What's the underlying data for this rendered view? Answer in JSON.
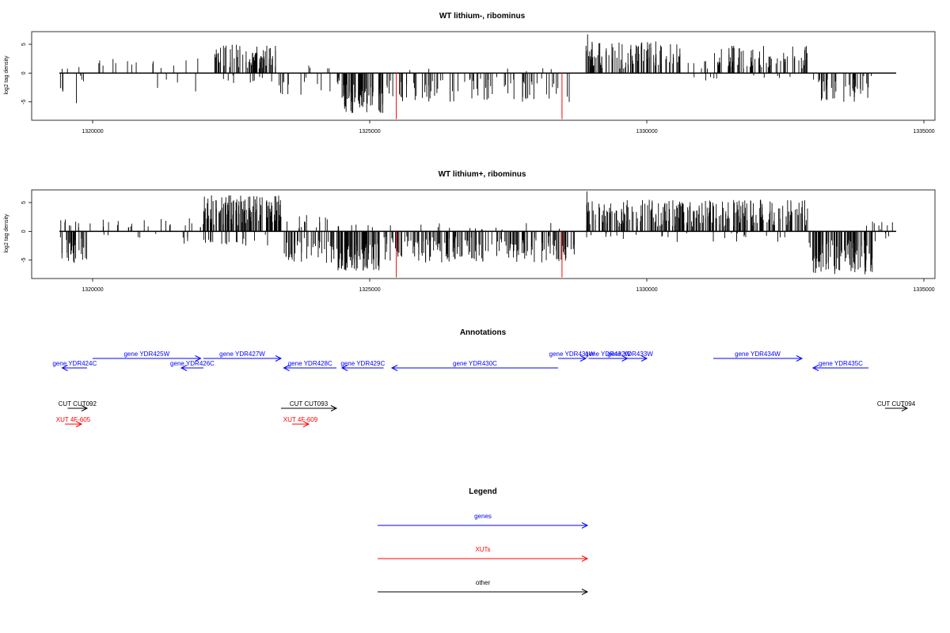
{
  "chart_data": [
    {
      "type": "bar",
      "title": "WT lithium-, ribominus",
      "ylabel": "log2 tag density",
      "xlim": [
        1318900,
        1335200
      ],
      "ylim": [
        -8.2,
        7.2
      ],
      "x_ticks": [
        1320000,
        1325000,
        1330000,
        1335000
      ],
      "y_ticks": [
        -5,
        0,
        5
      ],
      "baseline": [
        1319400,
        1334500
      ],
      "red_markers": [
        {
          "x": 1325480,
          "y": -8.0
        },
        {
          "x": 1328470,
          "y": -8.0
        }
      ],
      "segments": [
        {
          "from": 1319400,
          "to": 1319480,
          "n": 4,
          "sign": -1,
          "lo": 2.0,
          "hi": 5.5
        },
        {
          "from": 1319420,
          "to": 1319900,
          "n": 3,
          "sign": 1,
          "lo": 0.4,
          "hi": 1.2
        },
        {
          "from": 1319500,
          "to": 1319900,
          "n": 3,
          "sign": -1,
          "lo": 0.4,
          "hi": 1.5
        },
        {
          "from": 1319700,
          "to": 1319720,
          "n": 1,
          "sign": -1,
          "lo": 5.2,
          "hi": 5.5
        },
        {
          "from": 1319800,
          "to": 1320500,
          "n": 5,
          "sign": 1,
          "lo": 1.0,
          "hi": 2.6
        },
        {
          "from": 1320600,
          "to": 1320900,
          "n": 3,
          "sign": 1,
          "lo": 1.0,
          "hi": 2.6
        },
        {
          "from": 1321000,
          "to": 1321700,
          "n": 5,
          "sign": 1,
          "lo": 0.8,
          "hi": 2.2
        },
        {
          "from": 1321100,
          "to": 1321600,
          "n": 3,
          "sign": -1,
          "lo": 0.8,
          "hi": 2.6
        },
        {
          "from": 1321850,
          "to": 1321880,
          "n": 1,
          "sign": -1,
          "lo": 3.0,
          "hi": 3.2
        },
        {
          "from": 1321880,
          "to": 1321920,
          "n": 1,
          "sign": 1,
          "lo": 2.5,
          "hi": 2.8
        },
        {
          "from": 1322200,
          "to": 1323300,
          "n": 70,
          "sign": 1,
          "lo": 0.8,
          "hi": 5.0
        },
        {
          "from": 1322200,
          "to": 1323300,
          "n": 10,
          "sign": -1,
          "lo": 0.3,
          "hi": 2.0
        },
        {
          "from": 1323300,
          "to": 1324500,
          "n": 18,
          "sign": -1,
          "lo": 0.8,
          "hi": 4.0
        },
        {
          "from": 1323600,
          "to": 1324300,
          "n": 4,
          "sign": 1,
          "lo": 0.5,
          "hi": 2.0
        },
        {
          "from": 1324500,
          "to": 1325250,
          "n": 70,
          "sign": -1,
          "lo": 2.0,
          "hi": 7.0
        },
        {
          "from": 1325300,
          "to": 1328600,
          "n": 80,
          "sign": -1,
          "lo": 0.5,
          "hi": 5.0
        },
        {
          "from": 1325300,
          "to": 1328600,
          "n": 6,
          "sign": 1,
          "lo": 0.3,
          "hi": 1.0
        },
        {
          "from": 1328900,
          "to": 1330600,
          "n": 100,
          "sign": 1,
          "lo": 0.8,
          "hi": 5.5
        },
        {
          "from": 1328900,
          "to": 1328960,
          "n": 1,
          "sign": 1,
          "lo": 6.5,
          "hi": 7.0
        },
        {
          "from": 1330600,
          "to": 1331200,
          "n": 6,
          "sign": 1,
          "lo": 0.5,
          "hi": 2.5
        },
        {
          "from": 1330800,
          "to": 1331400,
          "n": 4,
          "sign": -1,
          "lo": 0.3,
          "hi": 1.5
        },
        {
          "from": 1331200,
          "to": 1332900,
          "n": 70,
          "sign": 1,
          "lo": 0.8,
          "hi": 4.8
        },
        {
          "from": 1331200,
          "to": 1332900,
          "n": 6,
          "sign": -1,
          "lo": 0.3,
          "hi": 1.2
        },
        {
          "from": 1333000,
          "to": 1334000,
          "n": 40,
          "sign": -1,
          "lo": 1.0,
          "hi": 5.0
        },
        {
          "from": 1333900,
          "to": 1334200,
          "n": 2,
          "sign": -1,
          "lo": 0.3,
          "hi": 1.0
        }
      ]
    },
    {
      "type": "bar",
      "title": "WT lithium+, ribominus",
      "ylabel": "log2 tag density",
      "xlim": [
        1318900,
        1335200
      ],
      "ylim": [
        -8.2,
        7.2
      ],
      "x_ticks": [
        1320000,
        1325000,
        1330000,
        1335000
      ],
      "y_ticks": [
        -5,
        0,
        5
      ],
      "baseline": [
        1319400,
        1334500
      ],
      "red_markers": [
        {
          "x": 1325480,
          "y": -8.0
        },
        {
          "x": 1328470,
          "y": -8.0
        }
      ],
      "segments": [
        {
          "from": 1319400,
          "to": 1319900,
          "n": 30,
          "sign": -1,
          "lo": 1.0,
          "hi": 5.5
        },
        {
          "from": 1319420,
          "to": 1319900,
          "n": 8,
          "sign": 1,
          "lo": 0.5,
          "hi": 2.2
        },
        {
          "from": 1319900,
          "to": 1321200,
          "n": 12,
          "sign": 1,
          "lo": 0.5,
          "hi": 2.7
        },
        {
          "from": 1320000,
          "to": 1321200,
          "n": 5,
          "sign": -1,
          "lo": 0.3,
          "hi": 1.2
        },
        {
          "from": 1321200,
          "to": 1322000,
          "n": 10,
          "sign": 1,
          "lo": 0.5,
          "hi": 2.4
        },
        {
          "from": 1321600,
          "to": 1322000,
          "n": 4,
          "sign": -1,
          "lo": 1.0,
          "hi": 3.0
        },
        {
          "from": 1322000,
          "to": 1323400,
          "n": 130,
          "sign": 1,
          "lo": 1.0,
          "hi": 6.3
        },
        {
          "from": 1322000,
          "to": 1323400,
          "n": 20,
          "sign": -1,
          "lo": 0.3,
          "hi": 2.5
        },
        {
          "from": 1323400,
          "to": 1324400,
          "n": 40,
          "sign": -1,
          "lo": 1.0,
          "hi": 5.5
        },
        {
          "from": 1323400,
          "to": 1324400,
          "n": 12,
          "sign": 1,
          "lo": 0.5,
          "hi": 3.0
        },
        {
          "from": 1324400,
          "to": 1325200,
          "n": 90,
          "sign": -1,
          "lo": 2.0,
          "hi": 7.0
        },
        {
          "from": 1324400,
          "to": 1325200,
          "n": 6,
          "sign": 1,
          "lo": 0.3,
          "hi": 1.2
        },
        {
          "from": 1325200,
          "to": 1328700,
          "n": 180,
          "sign": -1,
          "lo": 0.8,
          "hi": 5.5
        },
        {
          "from": 1325200,
          "to": 1328700,
          "n": 14,
          "sign": 1,
          "lo": 0.3,
          "hi": 1.5
        },
        {
          "from": 1328900,
          "to": 1333000,
          "n": 260,
          "sign": 1,
          "lo": 0.8,
          "hi": 5.5
        },
        {
          "from": 1328900,
          "to": 1328960,
          "n": 1,
          "sign": 1,
          "lo": 6.5,
          "hi": 7.0
        },
        {
          "from": 1328900,
          "to": 1333000,
          "n": 25,
          "sign": -1,
          "lo": 0.3,
          "hi": 2.0
        },
        {
          "from": 1332900,
          "to": 1334100,
          "n": 100,
          "sign": -1,
          "lo": 1.5,
          "hi": 7.5
        },
        {
          "from": 1333900,
          "to": 1334500,
          "n": 8,
          "sign": 1,
          "lo": 0.3,
          "hi": 1.8
        },
        {
          "from": 1333900,
          "to": 1334500,
          "n": 6,
          "sign": -1,
          "lo": 0.3,
          "hi": 1.8
        }
      ]
    }
  ],
  "annotations": {
    "title": "Annotations",
    "colors": {
      "gene": "#0000ff",
      "xut": "#ff0000",
      "other": "#000000"
    },
    "features": [
      {
        "label": "gene YDR424C",
        "kind": "gene",
        "row": 2,
        "from": 1319450,
        "to": 1319900,
        "strand": "-"
      },
      {
        "label": "gene YDR425W",
        "kind": "gene",
        "row": 1,
        "from": 1320000,
        "to": 1321950,
        "strand": "+"
      },
      {
        "label": "gene YDR426C",
        "kind": "gene",
        "row": 2,
        "from": 1321600,
        "to": 1322000,
        "strand": "-"
      },
      {
        "label": "gene YDR427W",
        "kind": "gene",
        "row": 1,
        "from": 1322000,
        "to": 1323400,
        "strand": "+"
      },
      {
        "label": "gene YDR428C",
        "kind": "gene",
        "row": 2,
        "from": 1323450,
        "to": 1324400,
        "strand": "-"
      },
      {
        "label": "gene YDR429C",
        "kind": "gene",
        "row": 2,
        "from": 1324500,
        "to": 1325250,
        "strand": "-"
      },
      {
        "label": "gene YDR430C",
        "kind": "gene",
        "row": 2,
        "from": 1325400,
        "to": 1328400,
        "strand": "-"
      },
      {
        "label": "gene YDR431W",
        "kind": "gene",
        "row": 1,
        "from": 1328400,
        "to": 1328900,
        "strand": "+"
      },
      {
        "label": "gene YDR432W",
        "kind": "gene",
        "row": 1,
        "from": 1328950,
        "to": 1329650,
        "strand": "+"
      },
      {
        "label": "gene YDR433W",
        "kind": "gene",
        "row": 1,
        "from": 1329400,
        "to": 1330000,
        "strand": "+"
      },
      {
        "label": "gene YDR434W",
        "kind": "gene",
        "row": 1,
        "from": 1331200,
        "to": 1332800,
        "strand": "+"
      },
      {
        "label": "gene YDR435C",
        "kind": "gene",
        "row": 2,
        "from": 1333000,
        "to": 1334000,
        "strand": "-"
      },
      {
        "label": "CUT CUT092",
        "kind": "other",
        "row": 4,
        "from": 1319550,
        "to": 1319900,
        "strand": "+"
      },
      {
        "label": "CUT CUT093",
        "kind": "other",
        "row": 4,
        "from": 1323400,
        "to": 1324400,
        "strand": "+"
      },
      {
        "label": "CUT CUT094",
        "kind": "other",
        "row": 4,
        "from": 1334300,
        "to": 1334700,
        "strand": "+"
      },
      {
        "label": "XUT 4F-605",
        "kind": "xut",
        "row": 5,
        "from": 1319500,
        "to": 1319800,
        "strand": "+"
      },
      {
        "label": "XUT 4F-609",
        "kind": "xut",
        "row": 5,
        "from": 1323600,
        "to": 1323900,
        "strand": "+"
      }
    ]
  },
  "legend": {
    "title": "Legend",
    "items": [
      {
        "label": "genes",
        "color": "#0000ff"
      },
      {
        "label": "XUTs",
        "color": "#ff0000"
      },
      {
        "label": "other",
        "color": "#000000"
      }
    ]
  }
}
